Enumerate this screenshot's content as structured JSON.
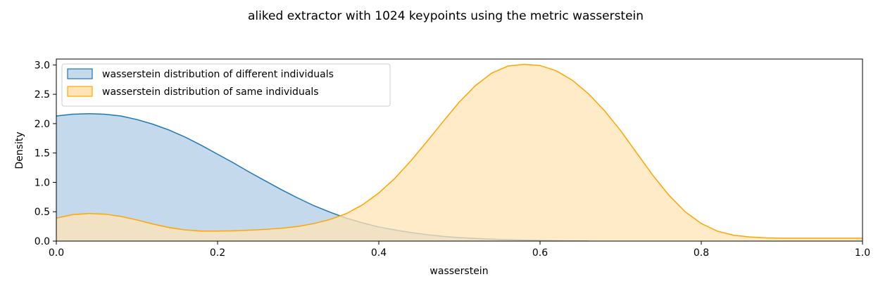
{
  "chart_data": {
    "type": "area",
    "title": "aliked extractor with 1024 keypoints using the metric wasserstein",
    "xlabel": "wasserstein",
    "ylabel": "Density",
    "xlim": [
      0,
      1
    ],
    "ylim": [
      0,
      3.1
    ],
    "x_ticks": [
      "0.0",
      "0.2",
      "0.4",
      "0.6",
      "0.8",
      "1.0"
    ],
    "y_ticks": [
      "0.0",
      "0.5",
      "1.0",
      "1.5",
      "2.0",
      "2.5",
      "3.0"
    ],
    "legend_position": "top-left",
    "grid": false,
    "series": [
      {
        "name": "wasserstein distribution of different individuals",
        "color": "#1f77b4",
        "fill": "#c5d9ec",
        "x": [
          0.0,
          0.02,
          0.04,
          0.06,
          0.08,
          0.1,
          0.12,
          0.14,
          0.16,
          0.18,
          0.2,
          0.22,
          0.24,
          0.26,
          0.28,
          0.3,
          0.32,
          0.34,
          0.36,
          0.38,
          0.4,
          0.42,
          0.44,
          0.46,
          0.48,
          0.5,
          0.52,
          0.54,
          0.56,
          0.58,
          0.6,
          0.62,
          0.64,
          0.66
        ],
        "y": [
          2.13,
          2.16,
          2.17,
          2.16,
          2.13,
          2.07,
          1.99,
          1.89,
          1.77,
          1.63,
          1.48,
          1.33,
          1.17,
          1.02,
          0.87,
          0.73,
          0.6,
          0.49,
          0.39,
          0.31,
          0.24,
          0.19,
          0.145,
          0.11,
          0.08,
          0.06,
          0.045,
          0.033,
          0.024,
          0.017,
          0.012,
          0.008,
          0.005,
          0.003
        ]
      },
      {
        "name": "wasserstein distribution of same individuals",
        "color": "#ffa500",
        "fill": "#ffe4b5",
        "x": [
          0.0,
          0.02,
          0.04,
          0.06,
          0.08,
          0.1,
          0.12,
          0.14,
          0.16,
          0.18,
          0.2,
          0.22,
          0.24,
          0.26,
          0.28,
          0.3,
          0.32,
          0.34,
          0.36,
          0.38,
          0.4,
          0.42,
          0.44,
          0.46,
          0.48,
          0.5,
          0.52,
          0.54,
          0.56,
          0.58,
          0.6,
          0.62,
          0.64,
          0.66,
          0.68,
          0.7,
          0.72,
          0.74,
          0.76,
          0.78,
          0.8,
          0.82,
          0.84,
          0.86,
          0.88,
          0.9,
          0.92,
          0.94,
          0.96,
          0.98,
          1.0
        ],
        "y": [
          0.39,
          0.45,
          0.47,
          0.46,
          0.42,
          0.36,
          0.29,
          0.23,
          0.19,
          0.17,
          0.17,
          0.175,
          0.185,
          0.2,
          0.22,
          0.25,
          0.3,
          0.37,
          0.47,
          0.62,
          0.82,
          1.07,
          1.37,
          1.7,
          2.04,
          2.37,
          2.65,
          2.86,
          2.98,
          3.01,
          2.99,
          2.9,
          2.74,
          2.51,
          2.22,
          1.88,
          1.5,
          1.12,
          0.78,
          0.5,
          0.3,
          0.17,
          0.1,
          0.07,
          0.055,
          0.05,
          0.05,
          0.05,
          0.05,
          0.05,
          0.05
        ]
      }
    ]
  }
}
